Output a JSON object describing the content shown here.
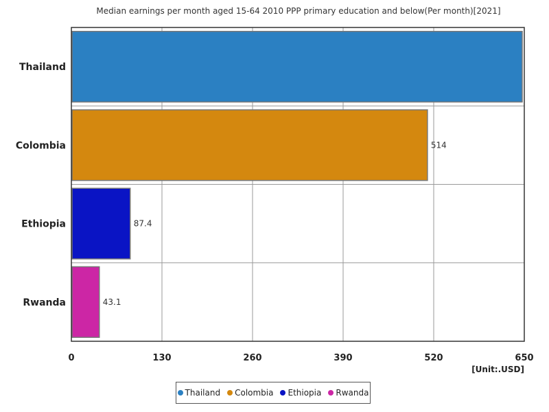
{
  "chart_data": {
    "type": "bar",
    "orientation": "horizontal",
    "title": "Median earnings per month aged 15-64 2010 PPP primary education and below(Per month)[2021]",
    "unit_label": "[Unit:.USD]",
    "categories": [
      "Thailand",
      "Colombia",
      "Ethiopia",
      "Rwanda"
    ],
    "values": [
      650,
      514,
      87.4,
      43.1
    ],
    "data_labels": [
      "",
      "514",
      "87.4",
      "43.1"
    ],
    "colors": [
      "#2b80c2",
      "#d4880f",
      "#0a14c4",
      "#cc26a5"
    ],
    "xlim": [
      0,
      650
    ],
    "xticks": [
      "0",
      "130",
      "260",
      "390",
      "520",
      "650"
    ],
    "grid": true,
    "legend_position": "bottom",
    "legend": [
      "Thailand",
      "Colombia",
      "Ethiopia",
      "Rwanda"
    ]
  }
}
